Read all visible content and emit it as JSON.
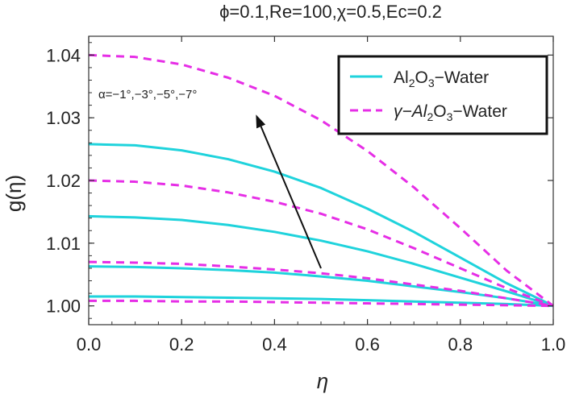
{
  "chart_data": {
    "type": "line",
    "title": "ϕ=0.1,Re=100,χ=0.5,Ec=0.2",
    "xlabel": "η",
    "ylabel": "g(η)",
    "xlim": [
      0,
      1
    ],
    "ylim": [
      0.997,
      1.043
    ],
    "xticks": [
      "0.0",
      "0.2",
      "0.4",
      "0.6",
      "0.8",
      "1.0"
    ],
    "yticks": [
      "1.00",
      "1.01",
      "1.02",
      "1.03",
      "1.04"
    ],
    "legend_position": "top-right",
    "annotation": "α=−1°,−3°,−5°,−7°",
    "legend": [
      {
        "label_main": "Al",
        "sub1": "2",
        "mid": "O",
        "sub2": "3",
        "tail": "−Water",
        "style": "solid",
        "color": "#1fd3dc"
      },
      {
        "label_main": "γ−Al",
        "sub1": "2",
        "mid": "O",
        "sub2": "3",
        "tail": "−Water",
        "style": "dashed",
        "color": "#e62ee6"
      }
    ],
    "x": [
      0.0,
      0.1,
      0.2,
      0.3,
      0.4,
      0.5,
      0.6,
      0.7,
      0.8,
      0.9,
      1.0
    ],
    "series": [
      {
        "group": "Al2O3-Water",
        "style": "solid",
        "color": "#1fd3dc",
        "values": [
          1.0015,
          1.0015,
          1.0014,
          1.0013,
          1.0012,
          1.0011,
          1.0009,
          1.0007,
          1.0005,
          1.0003,
          1.0
        ]
      },
      {
        "group": "Al2O3-Water",
        "style": "solid",
        "color": "#1fd3dc",
        "values": [
          1.0063,
          1.0062,
          1.006,
          1.0057,
          1.0053,
          1.0047,
          1.004,
          1.0031,
          1.0022,
          1.0012,
          1.0
        ]
      },
      {
        "group": "Al2O3-Water",
        "style": "solid",
        "color": "#1fd3dc",
        "values": [
          1.0143,
          1.0141,
          1.0137,
          1.0129,
          1.0118,
          1.0104,
          1.0087,
          1.0067,
          1.0045,
          1.0023,
          1.0
        ]
      },
      {
        "group": "Al2O3-Water",
        "style": "solid",
        "color": "#1fd3dc",
        "values": [
          1.0258,
          1.0256,
          1.0248,
          1.0234,
          1.0214,
          1.0188,
          1.0155,
          1.0118,
          1.0077,
          1.0036,
          1.0
        ]
      },
      {
        "group": "γ-Al2O3-Water",
        "style": "dashed",
        "color": "#e62ee6",
        "values": [
          1.0008,
          1.0008,
          1.0007,
          1.0007,
          1.0006,
          1.0005,
          1.0004,
          1.0003,
          1.0002,
          1.0001,
          1.0
        ]
      },
      {
        "group": "γ-Al2O3-Water",
        "style": "dashed",
        "color": "#e62ee6",
        "values": [
          1.007,
          1.0069,
          1.0067,
          1.0063,
          1.0058,
          1.0052,
          1.0044,
          1.0034,
          1.0024,
          1.0012,
          1.0
        ]
      },
      {
        "group": "γ-Al2O3-Water",
        "style": "dashed",
        "color": "#e62ee6",
        "values": [
          1.02,
          1.0198,
          1.0192,
          1.0181,
          1.0166,
          1.0147,
          1.0122,
          1.0092,
          1.006,
          1.0028,
          1.0
        ]
      },
      {
        "group": "γ-Al2O3-Water",
        "style": "dashed",
        "color": "#e62ee6",
        "values": [
          1.04,
          1.0397,
          1.0385,
          1.0364,
          1.0335,
          1.0296,
          1.0247,
          1.0189,
          1.0124,
          1.0056,
          1.0
        ]
      }
    ],
    "arrow": {
      "from": [
        0.5,
        1.006
      ],
      "to": [
        0.36,
        1.0305
      ]
    },
    "grid": false
  }
}
